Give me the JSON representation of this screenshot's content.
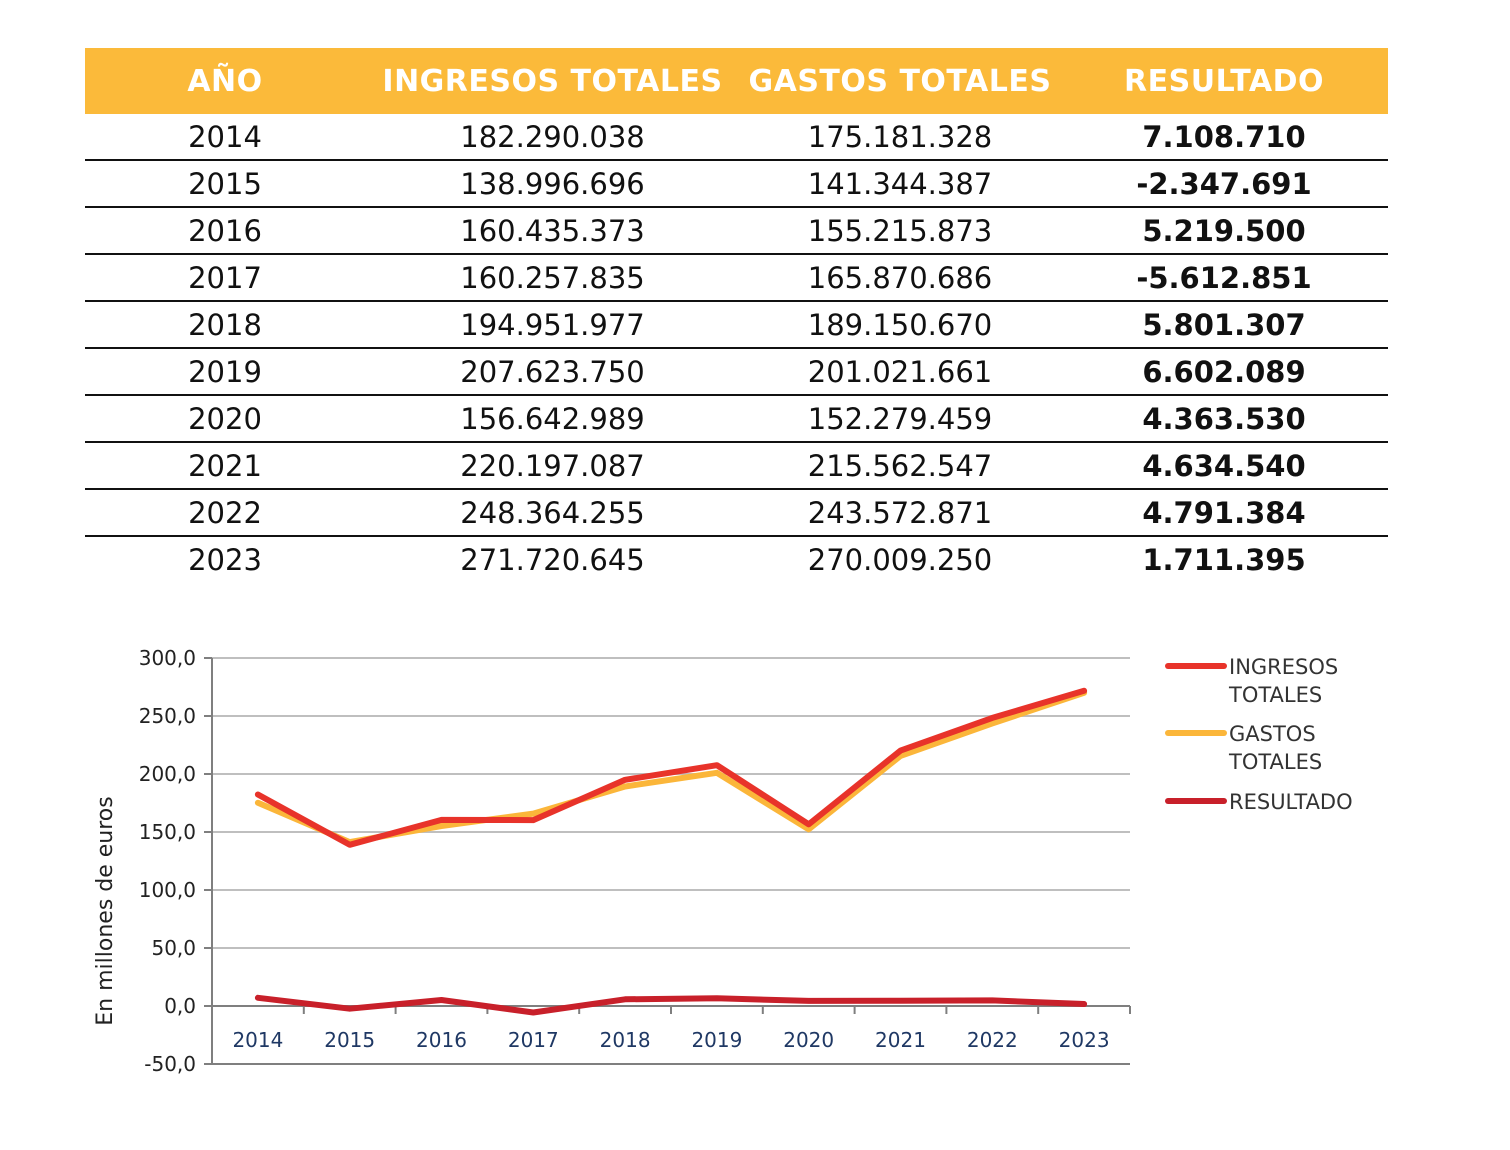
{
  "table": {
    "headers": [
      "AÑO",
      "INGRESOS TOTALES",
      "GASTOS TOTALES",
      "RESULTADO"
    ],
    "rows": [
      [
        "2014",
        "182.290.038",
        "175.181.328",
        "7.108.710"
      ],
      [
        "2015",
        "138.996.696",
        "141.344.387",
        "-2.347.691"
      ],
      [
        "2016",
        "160.435.373",
        "155.215.873",
        "5.219.500"
      ],
      [
        "2017",
        "160.257.835",
        "165.870.686",
        "-5.612.851"
      ],
      [
        "2018",
        "194.951.977",
        "189.150.670",
        "5.801.307"
      ],
      [
        "2019",
        "207.623.750",
        "201.021.661",
        "6.602.089"
      ],
      [
        "2020",
        "156.642.989",
        "152.279.459",
        "4.363.530"
      ],
      [
        "2021",
        "220.197.087",
        "215.562.547",
        "4.634.540"
      ],
      [
        "2022",
        "248.364.255",
        "243.572.871",
        "4.791.384"
      ],
      [
        "2023",
        "271.720.645",
        "270.009.250",
        "1.711.395"
      ]
    ]
  },
  "colors": {
    "header_bg": "#FBBA3A",
    "ingresos": "#E8332A",
    "gastos": "#FBB63A",
    "resultado": "#C8202A",
    "grid": "#BFBFBF",
    "axis": "#7F7F7F"
  },
  "chart_data": {
    "type": "line",
    "title": "",
    "xlabel": "",
    "ylabel": "En millones de euros",
    "ylim": [
      -50,
      300
    ],
    "ytick_step": 50,
    "ytick_labels": [
      "-50,0",
      "0,0",
      "50,0",
      "100,0",
      "150,0",
      "200,0",
      "250,0",
      "300,0"
    ],
    "categories": [
      "2014",
      "2015",
      "2016",
      "2017",
      "2018",
      "2019",
      "2020",
      "2021",
      "2022",
      "2023"
    ],
    "legend_position": "right",
    "series": [
      {
        "name": "INGRESOS TOTALES",
        "legend_lines": [
          "INGRESOS",
          "TOTALES"
        ],
        "color_key": "ingresos",
        "values": [
          182.3,
          139.0,
          160.4,
          160.3,
          195.0,
          207.6,
          156.6,
          220.2,
          248.4,
          271.7
        ]
      },
      {
        "name": "GASTOS TOTALES",
        "legend_lines": [
          "GASTOS",
          "TOTALES"
        ],
        "color_key": "gastos",
        "values": [
          175.2,
          141.3,
          155.2,
          165.9,
          189.2,
          201.0,
          152.3,
          215.6,
          243.6,
          270.0
        ]
      },
      {
        "name": "RESULTADO",
        "legend_lines": [
          "RESULTADO"
        ],
        "color_key": "resultado",
        "values": [
          7.1,
          -2.3,
          5.2,
          -5.6,
          5.8,
          6.6,
          4.4,
          4.6,
          4.8,
          1.7
        ]
      }
    ]
  }
}
